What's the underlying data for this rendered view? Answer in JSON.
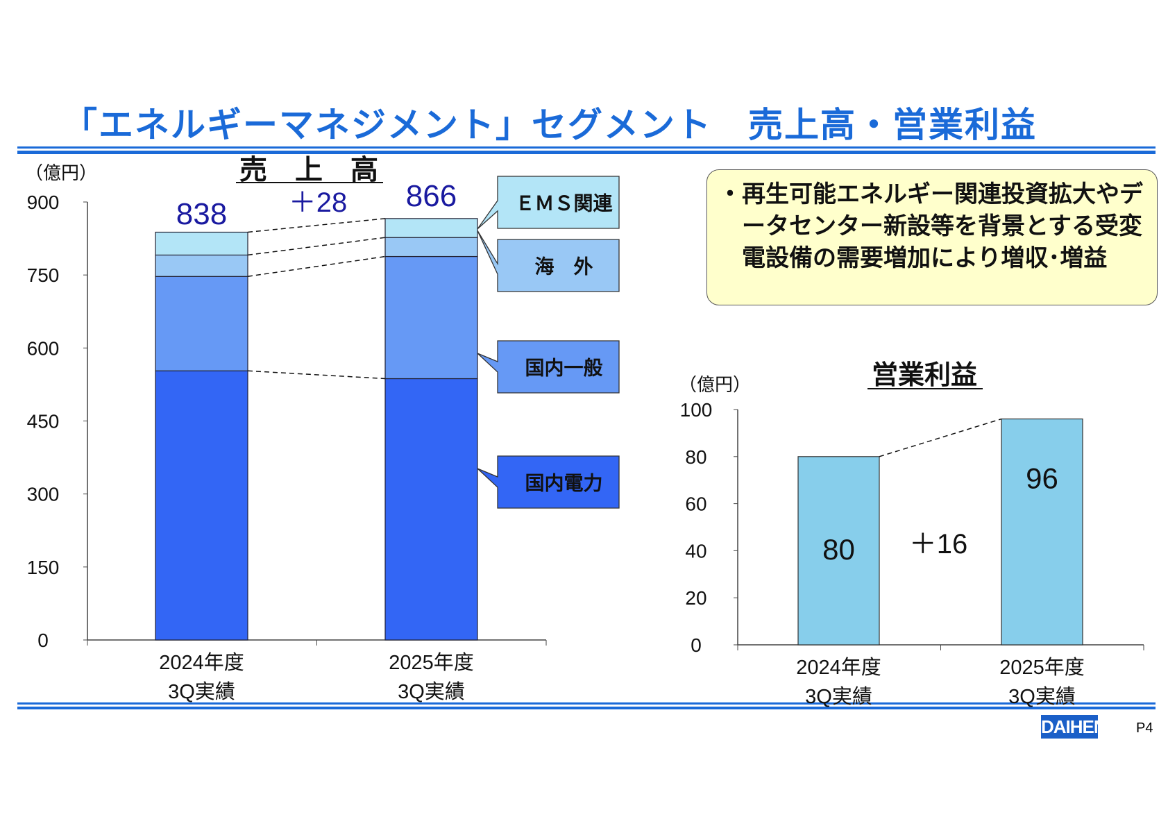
{
  "page": {
    "title": "「エネルギーマネジメント」セグメント　売上高・営業利益",
    "page_number": "P4",
    "logo": "DAIHEN"
  },
  "colors": {
    "title": "#1a6ad8",
    "value_label": "#1a1aa0",
    "ems": "#b3e5f7",
    "overseas": "#99c8f5",
    "domestic_general": "#6699f5",
    "domestic_power": "#3366f5",
    "profit_bar": "#87ceeb",
    "note_bg": "#ffffcc"
  },
  "note": {
    "bullet": "・",
    "text": "再生可能エネルギー関連投資拡大やデータセンター新設等を背景とする受変電設備の需要増加により増収･増益"
  },
  "chart_data": [
    {
      "type": "bar",
      "stacked": true,
      "title": "売　上　高",
      "unit": "（億円）",
      "ylim": [
        0,
        900
      ],
      "yticks": [
        0,
        150,
        300,
        450,
        600,
        750,
        900
      ],
      "categories": [
        "2024年度\n3Q実績",
        "2025年度\n3Q実績"
      ],
      "series": [
        {
          "name": "国内電力",
          "values": [
            553,
            537
          ]
        },
        {
          "name": "国内一般",
          "values": [
            194,
            251
          ]
        },
        {
          "name": "海　外",
          "values": [
            44,
            39
          ]
        },
        {
          "name": "ＥＭＳ関連",
          "values": [
            47,
            39
          ]
        }
      ],
      "totals": [
        "838",
        "866"
      ],
      "difference": "＋28"
    },
    {
      "type": "bar",
      "title": "営業利益",
      "unit": "（億円）",
      "ylim": [
        0,
        100
      ],
      "yticks": [
        0,
        20,
        40,
        60,
        80,
        100
      ],
      "categories": [
        "2024年度\n3Q実績",
        "2025年度\n3Q実績"
      ],
      "values": [
        80,
        96
      ],
      "value_labels": [
        "80",
        "96"
      ],
      "difference": "＋16"
    }
  ]
}
